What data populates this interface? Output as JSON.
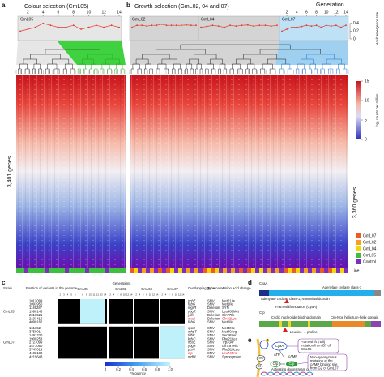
{
  "panel_a": {
    "letter": "a",
    "title": "Colour selection (CmL05)",
    "genes_label": "3,401 genes"
  },
  "panel_b": {
    "letter": "b",
    "title": "Growth selection (GmL02, 04 and 07)",
    "generation_label": "Generation",
    "y_axis_label": "Adult emergence rate",
    "genes_label": "3,360 genes",
    "colorbar_label": "log₂ counts per million",
    "colorbar_lim": [
      0,
      15
    ],
    "colorbar_ticks": [
      15,
      10,
      5,
      0
    ],
    "legend_title": "Line",
    "legend": [
      {
        "name": "GmL07",
        "color": "#ee5a24"
      },
      {
        "name": "GmL02",
        "color": "#f79f1f"
      },
      {
        "name": "GmL04",
        "color": "#f2d60a"
      },
      {
        "name": "CmL05",
        "color": "#3fbf3f"
      },
      {
        "name": "Control",
        "color": "#7b2fbe"
      }
    ]
  },
  "emergence": {
    "x": [
      1,
      2,
      3,
      4,
      5,
      6,
      7,
      8,
      9,
      10,
      11,
      12,
      13,
      14
    ],
    "xlim": [
      1,
      14
    ],
    "xticks": [
      2,
      4,
      6,
      8,
      10,
      12,
      14
    ],
    "ylim": [
      0,
      0.5
    ],
    "yticks": [
      0,
      0.2,
      0.4
    ],
    "color": "#e23b2e",
    "series": [
      {
        "name": "CmL05",
        "values": [
          0.2,
          0.25,
          0.3,
          0.4,
          0.35,
          0.3,
          0.3,
          0.35,
          0.25,
          0.3,
          0.35,
          0.3,
          0.35,
          0.3
        ]
      },
      {
        "name": "GmL02",
        "values": [
          0.3,
          0.35,
          0.35,
          0.33,
          0.35,
          0.35,
          0.38,
          0.35,
          0.35,
          0.35,
          0.35,
          0.36,
          0.35,
          0.35
        ]
      },
      {
        "name": "GmL04",
        "values": [
          0.3,
          0.32,
          0.35,
          0.33,
          0.3,
          0.35,
          0.33,
          0.35,
          0.36,
          0.33,
          0.35,
          0.35,
          0.33,
          0.35
        ]
      },
      {
        "name": "GmL07",
        "values": [
          0.2,
          0.25,
          0.3,
          0.3,
          0.32,
          0.35,
          0.33,
          0.35,
          0.3,
          0.35,
          0.33,
          0.35,
          0.3,
          0.35
        ]
      }
    ]
  },
  "panel_c": {
    "letter": "c",
    "headers": {
      "strain": "Strain",
      "position": "Position of variants in the genome",
      "generations": "Generations",
      "gene": "Overlapping gene name",
      "type": "Type",
      "change": "Amino acid change"
    },
    "groups": [
      {
        "name": "CmL05",
        "generations": [
          2,
          3,
          4,
          5,
          6,
          7,
          8,
          9,
          10,
          11,
          12,
          13,
          14
        ]
      },
      {
        "name": "GmL02",
        "generations": [
          2,
          4,
          6,
          8,
          10,
          12,
          14
        ]
      },
      {
        "name": "GmL04",
        "generations": [
          2,
          4,
          6,
          8,
          10,
          12,
          14
        ]
      },
      {
        "name": "GmL07",
        "generations": [
          2,
          4,
          6,
          8,
          10,
          12,
          14
        ]
      }
    ],
    "strains": [
      {
        "name": "CmL05",
        "rows": [
          {
            "position": "1013099",
            "gene": "pcbZ",
            "type": "SNV",
            "change": "Met21Ile"
          },
          {
            "position": "1093950",
            "gene": "fabG",
            "type": "SNV",
            "change": "Met1Ile"
          },
          {
            "position": "1149287",
            "gene": "mgrR",
            "type": "Deletion",
            "change": "SYN"
          },
          {
            "position": "1990143",
            "gene": "ybgR",
            "type": "SNV",
            "change": "Leu486Met"
          },
          {
            "position": "2010521",
            "gene": "yiiK",
            "type": "Deletion",
            "change": "Gln77Ile"
          },
          {
            "position": "2103410",
            "gene": "cyaA",
            "type": "Deletion",
            "change": "Gln42Lys",
            "highlight": true
          },
          {
            "position": "4090162",
            "gene": "fabG",
            "type": "SNV",
            "change": "Met1Ile"
          }
        ]
      },
      {
        "name": "GmL07",
        "rows": [
          {
            "position": "161352",
            "gene": "rpoC",
            "type": "SNV",
            "change": "Met40Ile"
          },
          {
            "position": "375801",
            "gene": "mhpT",
            "type": "SNV",
            "change": "Met40Arg"
          },
          {
            "position": "1491230",
            "gene": "fdhF",
            "type": "SNV",
            "change": "Ser36Ser"
          },
          {
            "position": "1900258",
            "gene": "kdsC",
            "type": "SNV",
            "change": "Phe21Leu"
          },
          {
            "position": "2727099",
            "gene": "hcaE",
            "type": "SNV",
            "change": "Trp334*"
          },
          {
            "position": "3471060",
            "gene": "ybgR",
            "type": "SNV",
            "change": "Gln197His"
          },
          {
            "position": "3747019",
            "gene": "ptsH",
            "type": "SNV",
            "change": "Phe510Leu"
          },
          {
            "position": "4102188",
            "gene": "crp",
            "type": "SNV",
            "change": "Leu74Pro",
            "highlight": true
          },
          {
            "position": "4215643",
            "gene": "mrfM",
            "type": "SNV",
            "change": "Synonymous"
          }
        ]
      }
    ],
    "colorbar_label": "Frequency",
    "colorbar_lim": [
      0,
      1
    ],
    "colorbar_ticks": [
      0,
      0.2,
      0.4,
      0.6,
      0.8,
      {
        "value": 1,
        "label": "1.0"
      }
    ]
  },
  "panel_d": {
    "letter": "d",
    "cyaa": "CyaA",
    "cyaa_domain_n": "Adenylate cyclase class-1, N-terminal domain",
    "cyaa_domain": "Adenylate cyclase class-1",
    "cyaa_mutation": "Frameshift mutation (CyaA)",
    "crp": "Crp",
    "crp_domain_1": "Cyclic nucleotide binding domain",
    "crp_domain_2": "Crp-type helix-turn-helix domain",
    "crp_mutation": "Leucine → proline"
  },
  "panel_e": {
    "letter": "e",
    "callout_1": [
      "Frameshift (null)",
      "mutation from G7 of",
      "CmL05"
    ],
    "callout_2": [
      "Non-synonymous",
      "mutation at the",
      "cAMP binding site",
      "from G2 of GmL07"
    ],
    "cyaa": "CyaA",
    "atp": "ATP",
    "camp": "cAMP",
    "crp": "Crp",
    "crp_camp": "Crp",
    "ei": "EI",
    "hpr": "HPr",
    "p": "P",
    "downstream": "Activating downstream genes"
  }
}
